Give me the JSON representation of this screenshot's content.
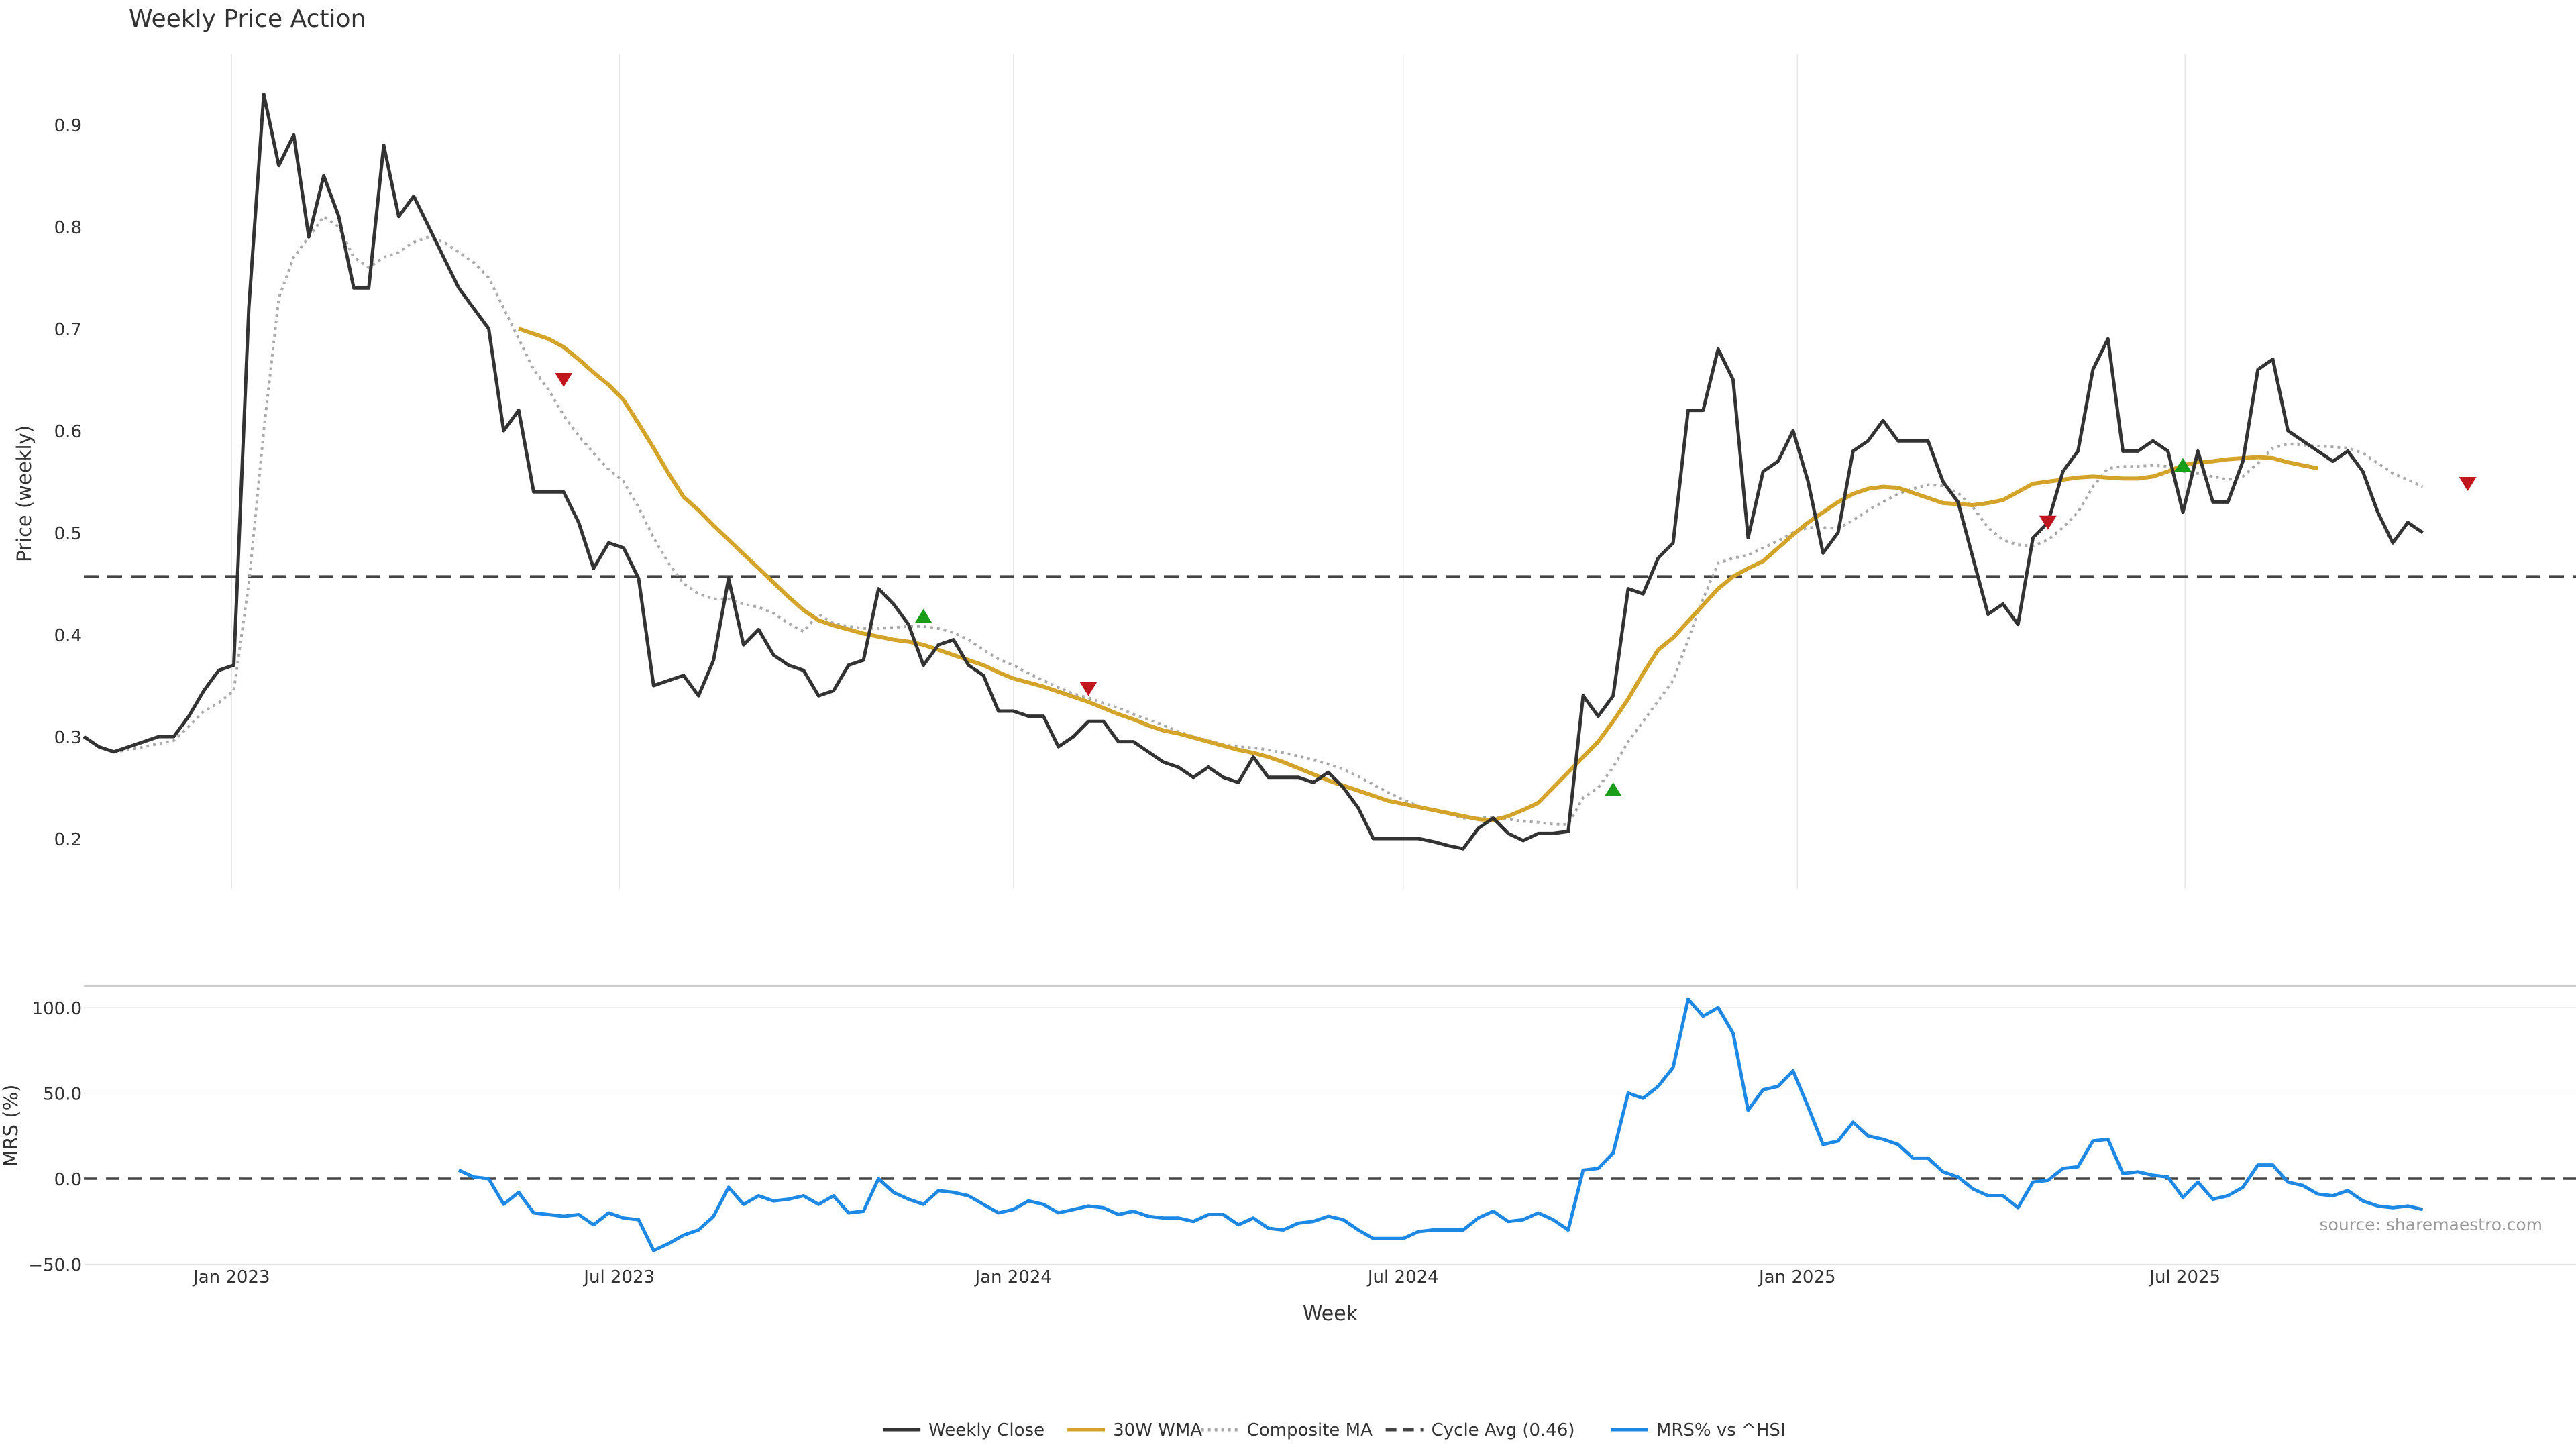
{
  "title": "Weekly Price Action",
  "source": "source: sharemaestro.com",
  "colors": {
    "close": "#333333",
    "wma": "#D4A42A",
    "composite": "#AAAAAA",
    "cycle": "#444444",
    "mrs": "#1E88E5",
    "buy": "#1A9E1A",
    "sell": "#C0161D",
    "grid": "#E8E8E8"
  },
  "chart_data": [
    {
      "type": "line",
      "title": "Weekly Price Action",
      "ylabel": "Price (weekly)",
      "ylim": [
        0.15,
        0.97
      ],
      "yticks": [
        0.2,
        0.3,
        0.4,
        0.5,
        0.6,
        0.7,
        0.8,
        0.9
      ],
      "x_start": "2022-10-24",
      "x_step_days": 7,
      "reference_line": {
        "name": "Cycle Avg (0.46)",
        "value": 0.457
      },
      "series": [
        {
          "name": "Weekly Close",
          "values": [
            0.3,
            0.29,
            0.285,
            0.29,
            0.295,
            0.3,
            0.3,
            0.32,
            0.345,
            0.365,
            0.37,
            0.72,
            0.93,
            0.86,
            0.89,
            0.79,
            0.85,
            0.81,
            0.74,
            0.74,
            0.88,
            0.81,
            0.83,
            0.8,
            0.77,
            0.74,
            0.72,
            0.7,
            0.6,
            0.62,
            0.54,
            0.54,
            0.54,
            0.51,
            0.465,
            0.49,
            0.485,
            0.455,
            0.35,
            0.355,
            0.36,
            0.34,
            0.375,
            0.455,
            0.39,
            0.405,
            0.38,
            0.37,
            0.365,
            0.34,
            0.345,
            0.37,
            0.375,
            0.445,
            0.43,
            0.41,
            0.37,
            0.39,
            0.395,
            0.37,
            0.36,
            0.325,
            0.325,
            0.32,
            0.32,
            0.29,
            0.3,
            0.315,
            0.315,
            0.295,
            0.295,
            0.285,
            0.275,
            0.27,
            0.26,
            0.27,
            0.26,
            0.255,
            0.28,
            0.26,
            0.26,
            0.26,
            0.255,
            0.265,
            0.25,
            0.23,
            0.2,
            0.2,
            0.2,
            0.2,
            0.197,
            0.193,
            0.19,
            0.21,
            0.22,
            0.205,
            0.198,
            0.205,
            0.205,
            0.207,
            0.34,
            0.32,
            0.34,
            0.445,
            0.44,
            0.475,
            0.49,
            0.62,
            0.62,
            0.68,
            0.65,
            0.495,
            0.56,
            0.57,
            0.6,
            0.55,
            0.48,
            0.5,
            0.58,
            0.59,
            0.61,
            0.59,
            0.59,
            0.59,
            0.55,
            0.53,
            0.475,
            0.42,
            0.43,
            0.41,
            0.495,
            0.51,
            0.56,
            0.58,
            0.66,
            0.69,
            0.58,
            0.58,
            0.59,
            0.58,
            0.52,
            0.58,
            0.53,
            0.53,
            0.57,
            0.66,
            0.67,
            0.6,
            0.59,
            0.58,
            0.57,
            0.58,
            0.56,
            0.52,
            0.49,
            0.51,
            0.5
          ]
        },
        {
          "name": "30W WMA",
          "start_index": 29,
          "values": [
            0.7,
            0.695,
            0.69,
            0.682,
            0.67,
            0.657,
            0.645,
            0.63,
            0.607,
            0.583,
            0.558,
            0.535,
            0.522,
            0.507,
            0.493,
            0.479,
            0.465,
            0.451,
            0.437,
            0.424,
            0.414,
            0.409,
            0.405,
            0.401,
            0.398,
            0.395,
            0.393,
            0.39,
            0.385,
            0.38,
            0.375,
            0.37,
            0.363,
            0.357,
            0.353,
            0.349,
            0.344,
            0.339,
            0.334,
            0.328,
            0.322,
            0.317,
            0.311,
            0.306,
            0.303,
            0.299,
            0.295,
            0.291,
            0.287,
            0.284,
            0.28,
            0.275,
            0.269,
            0.263,
            0.257,
            0.252,
            0.247,
            0.242,
            0.237,
            0.234,
            0.231,
            0.228,
            0.225,
            0.222,
            0.219,
            0.218,
            0.222,
            0.228,
            0.235,
            0.25,
            0.265,
            0.28,
            0.295,
            0.315,
            0.337,
            0.362,
            0.385,
            0.397,
            0.413,
            0.429,
            0.445,
            0.457,
            0.465,
            0.472,
            0.485,
            0.498,
            0.51,
            0.52,
            0.53,
            0.538,
            0.543,
            0.545,
            0.544,
            0.539,
            0.534,
            0.529,
            0.528,
            0.527,
            0.529,
            0.532,
            0.54,
            0.548,
            0.55,
            0.552,
            0.554,
            0.555,
            0.554,
            0.553,
            0.553,
            0.555,
            0.56,
            0.566,
            0.569,
            0.57,
            0.572,
            0.573,
            0.574,
            0.573,
            0.569,
            0.566,
            0.563
          ]
        },
        {
          "name": "Composite MA",
          "values": [
            0.3,
            0.29,
            0.285,
            0.287,
            0.29,
            0.293,
            0.296,
            0.31,
            0.325,
            0.333,
            0.345,
            0.45,
            0.6,
            0.73,
            0.77,
            0.79,
            0.81,
            0.8,
            0.77,
            0.76,
            0.77,
            0.775,
            0.785,
            0.79,
            0.785,
            0.775,
            0.765,
            0.75,
            0.72,
            0.69,
            0.66,
            0.64,
            0.615,
            0.595,
            0.578,
            0.562,
            0.55,
            0.525,
            0.495,
            0.47,
            0.45,
            0.44,
            0.435,
            0.435,
            0.43,
            0.427,
            0.421,
            0.411,
            0.403,
            0.42,
            0.411,
            0.408,
            0.406,
            0.406,
            0.407,
            0.408,
            0.408,
            0.406,
            0.402,
            0.395,
            0.385,
            0.376,
            0.37,
            0.362,
            0.355,
            0.348,
            0.342,
            0.338,
            0.333,
            0.328,
            0.322,
            0.317,
            0.311,
            0.305,
            0.3,
            0.296,
            0.292,
            0.29,
            0.289,
            0.287,
            0.284,
            0.281,
            0.277,
            0.273,
            0.268,
            0.261,
            0.253,
            0.245,
            0.238,
            0.232,
            0.228,
            0.224,
            0.22,
            0.22,
            0.221,
            0.219,
            0.217,
            0.216,
            0.214,
            0.214,
            0.24,
            0.25,
            0.27,
            0.295,
            0.315,
            0.335,
            0.355,
            0.395,
            0.435,
            0.47,
            0.475,
            0.478,
            0.485,
            0.492,
            0.5,
            0.505,
            0.505,
            0.504,
            0.512,
            0.522,
            0.53,
            0.538,
            0.543,
            0.547,
            0.546,
            0.539,
            0.525,
            0.505,
            0.493,
            0.488,
            0.487,
            0.493,
            0.505,
            0.52,
            0.545,
            0.563,
            0.565,
            0.565,
            0.566,
            0.565,
            0.56,
            0.558,
            0.555,
            0.552,
            0.555,
            0.568,
            0.583,
            0.587,
            0.586,
            0.585,
            0.584,
            0.583,
            0.578,
            0.568,
            0.558,
            0.552,
            0.545
          ]
        }
      ],
      "markers": [
        {
          "index": 32,
          "value": 0.65,
          "type": "sell"
        },
        {
          "index": 56,
          "value": 0.418,
          "type": "buy"
        },
        {
          "index": 67,
          "value": 0.347,
          "type": "sell"
        },
        {
          "index": 102,
          "value": 0.248,
          "type": "buy"
        },
        {
          "index": 131,
          "value": 0.51,
          "type": "sell"
        },
        {
          "index": 140,
          "value": 0.566,
          "type": "buy"
        },
        {
          "index": 159,
          "value": 0.548,
          "type": "sell"
        }
      ]
    },
    {
      "type": "line",
      "xlabel": "Week",
      "ylabel": "MRS (%)",
      "ylim": [
        -55,
        118
      ],
      "yticks": [
        -50,
        0,
        50,
        100
      ],
      "ytick_labels": [
        "−50.0",
        "0.0",
        "50.0",
        "100.0"
      ],
      "xticks": [
        {
          "label": "Jan 2023",
          "date": "2023-01-01"
        },
        {
          "label": "Jul 2023",
          "date": "2023-07-01"
        },
        {
          "label": "Jan 2024",
          "date": "2024-01-01"
        },
        {
          "label": "Jul 2024",
          "date": "2024-07-01"
        },
        {
          "label": "Jan 2025",
          "date": "2025-01-01"
        },
        {
          "label": "Jul 2025",
          "date": "2025-07-01"
        }
      ],
      "series": [
        {
          "name": "MRS% vs ^HSI",
          "start_index": 25,
          "values": [
            5,
            1,
            0,
            -15,
            -8,
            -20,
            -21,
            -22,
            -21,
            -27,
            -20,
            -23,
            -24,
            -42,
            -38,
            -33,
            -30,
            -22,
            -5,
            -15,
            -10,
            -13,
            -12,
            -10,
            -15,
            -10,
            -20,
            -19,
            0,
            -8,
            -12,
            -15,
            -7,
            -8,
            -10,
            -15,
            -20,
            -18,
            -13,
            -15,
            -20,
            -18,
            -16,
            -17,
            -21,
            -19,
            -22,
            -23,
            -23,
            -25,
            -21,
            -21,
            -27,
            -23,
            -29,
            -30,
            -26,
            -25,
            -22,
            -24,
            -30,
            -35,
            -35,
            -35,
            -31,
            -30,
            -30,
            -30,
            -23,
            -19,
            -25,
            -24,
            -20,
            -24,
            -30,
            5,
            6,
            15,
            50,
            47,
            54,
            65,
            105,
            95,
            100,
            85,
            40,
            52,
            54,
            63,
            42,
            20,
            22,
            33,
            25,
            23,
            20,
            12,
            12,
            4,
            1,
            -6,
            -10,
            -10,
            -17,
            -2,
            -1,
            6,
            7,
            22,
            23,
            3,
            4,
            2,
            1,
            -11,
            -2,
            -12,
            -10,
            -5,
            8,
            8,
            -2,
            -4,
            -9,
            -10,
            -7,
            -13,
            -16,
            -17,
            -16,
            -18
          ]
        }
      ]
    }
  ],
  "legend": {
    "items": [
      {
        "label": "Weekly Close",
        "style": "solid",
        "color": "#333333"
      },
      {
        "label": "30W WMA",
        "style": "solid",
        "color": "#D4A42A"
      },
      {
        "label": "Composite MA",
        "style": "dotted",
        "color": "#AAAAAA"
      },
      {
        "label": "Cycle Avg (0.46)",
        "style": "dashed",
        "color": "#444444"
      },
      {
        "label": "MRS% vs ^HSI",
        "style": "solid",
        "color": "#1E88E5"
      }
    ]
  }
}
